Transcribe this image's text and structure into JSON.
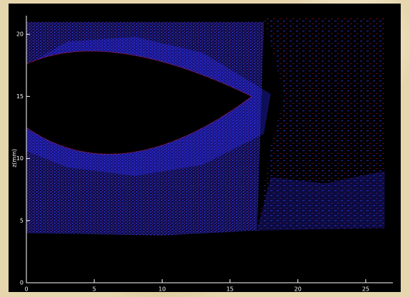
{
  "chart_data": {
    "type": "vector",
    "y_label": "z(mm)",
    "xlim": [
      0,
      27
    ],
    "ylim": [
      0,
      21.5
    ],
    "xticks": [
      0,
      5,
      10,
      15,
      20,
      25
    ],
    "yticks": [
      0,
      5,
      10,
      15,
      20
    ],
    "color": "#2a2aff",
    "arrow_color": "#d02040"
  }
}
